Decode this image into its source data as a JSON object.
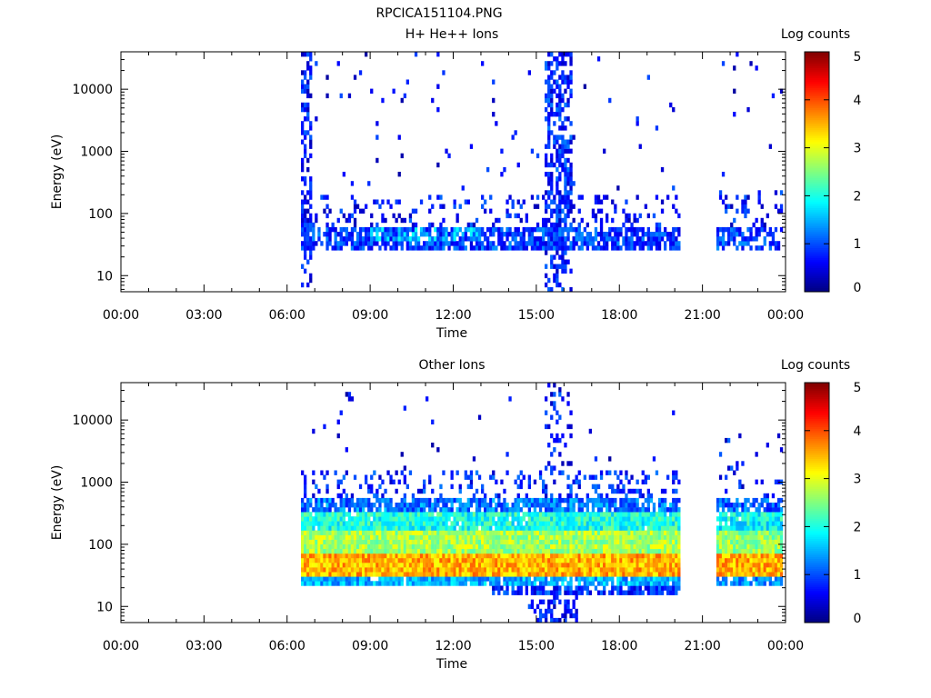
{
  "figure": {
    "title": "RPCICA151104.PNG"
  },
  "chart_data": [
    {
      "type": "heatmap",
      "title": "H+ He++ Ions",
      "xlabel": "Time",
      "ylabel": "Energy (eV)",
      "x_ticks": [
        "00:00",
        "03:00",
        "06:00",
        "09:00",
        "12:00",
        "15:00",
        "18:00",
        "21:00",
        "00:00"
      ],
      "xlim_hours": [
        0,
        24
      ],
      "y_scale": "log",
      "y_ticks": [
        10,
        100,
        1000,
        10000
      ],
      "y_tick_labels": [
        "10",
        "100",
        "1000",
        "10000"
      ],
      "ylim": [
        5.5,
        40000
      ],
      "colorbar": {
        "label": "Log counts",
        "range": [
          0,
          5
        ],
        "ticks": [
          "0",
          "1",
          "2",
          "3",
          "4",
          "5"
        ],
        "colormap": "jet"
      },
      "data_intervals_hours": [
        [
          6.55,
          20.2
        ],
        [
          21.5,
          23.95
        ]
      ],
      "regions": [
        {
          "t": [
            6.55,
            20.2
          ],
          "e": [
            25,
            60
          ],
          "level": 0.9,
          "density": 0.75
        },
        {
          "t": [
            9.0,
            13.0
          ],
          "e": [
            38,
            60
          ],
          "level": 1.5,
          "density": 0.55
        },
        {
          "t": [
            6.55,
            20.2
          ],
          "e": [
            60,
            200
          ],
          "level": 0.7,
          "density": 0.2
        },
        {
          "t": [
            6.55,
            6.9
          ],
          "e": [
            5.5,
            40000
          ],
          "level": 0.7,
          "density": 0.5
        },
        {
          "t": [
            15.3,
            16.3
          ],
          "e": [
            25,
            40000
          ],
          "level": 0.8,
          "density": 0.55
        },
        {
          "t": [
            15.3,
            16.3
          ],
          "e": [
            5.5,
            25
          ],
          "level": 0.7,
          "density": 0.3
        },
        {
          "t": [
            6.55,
            20.2
          ],
          "e": [
            200,
            40000
          ],
          "level": 0.6,
          "density": 0.015
        },
        {
          "t": [
            21.5,
            23.95
          ],
          "e": [
            25,
            60
          ],
          "level": 0.9,
          "density": 0.55
        },
        {
          "t": [
            21.5,
            23.95
          ],
          "e": [
            60,
            250
          ],
          "level": 0.7,
          "density": 0.2
        },
        {
          "t": [
            21.5,
            23.95
          ],
          "e": [
            250,
            40000
          ],
          "level": 0.6,
          "density": 0.015
        }
      ]
    },
    {
      "type": "heatmap",
      "title": "Other Ions",
      "xlabel": "Time",
      "ylabel": "Energy (eV)",
      "x_ticks": [
        "00:00",
        "03:00",
        "06:00",
        "09:00",
        "12:00",
        "15:00",
        "18:00",
        "21:00",
        "00:00"
      ],
      "xlim_hours": [
        0,
        24
      ],
      "y_scale": "log",
      "y_ticks": [
        10,
        100,
        1000,
        10000
      ],
      "y_tick_labels": [
        "10",
        "100",
        "1000",
        "10000"
      ],
      "ylim": [
        5.5,
        40000
      ],
      "colorbar": {
        "label": "Log counts",
        "range": [
          0,
          5
        ],
        "ticks": [
          "0",
          "1",
          "2",
          "3",
          "4",
          "5"
        ],
        "colormap": "jet"
      },
      "data_intervals_hours": [
        [
          6.55,
          20.2
        ],
        [
          21.5,
          23.95
        ]
      ],
      "regions": [
        {
          "t": [
            6.55,
            20.2
          ],
          "e": [
            30,
            70
          ],
          "level": 3.5,
          "density": 1.0
        },
        {
          "t": [
            6.55,
            20.2
          ],
          "e": [
            70,
            160
          ],
          "level": 2.7,
          "density": 1.0
        },
        {
          "t": [
            6.55,
            20.2
          ],
          "e": [
            160,
            350
          ],
          "level": 2.0,
          "density": 0.95
        },
        {
          "t": [
            6.55,
            20.2
          ],
          "e": [
            350,
            600
          ],
          "level": 1.2,
          "density": 0.8
        },
        {
          "t": [
            6.55,
            20.2
          ],
          "e": [
            600,
            1500
          ],
          "level": 0.8,
          "density": 0.25
        },
        {
          "t": [
            6.55,
            20.2
          ],
          "e": [
            22,
            30
          ],
          "level": 1.5,
          "density": 0.9
        },
        {
          "t": [
            13.4,
            20.2
          ],
          "e": [
            15,
            22
          ],
          "level": 0.8,
          "density": 0.7
        },
        {
          "t": [
            14.7,
            16.5
          ],
          "e": [
            5.5,
            15
          ],
          "level": 0.7,
          "density": 0.4
        },
        {
          "t": [
            15.3,
            16.3
          ],
          "e": [
            1500,
            40000
          ],
          "level": 0.7,
          "density": 0.25
        },
        {
          "t": [
            6.55,
            20.2
          ],
          "e": [
            1500,
            40000
          ],
          "level": 0.6,
          "density": 0.01
        },
        {
          "t": [
            21.5,
            23.95
          ],
          "e": [
            30,
            70
          ],
          "level": 3.5,
          "density": 1.0
        },
        {
          "t": [
            21.5,
            23.95
          ],
          "e": [
            70,
            160
          ],
          "level": 2.6,
          "density": 1.0
        },
        {
          "t": [
            21.5,
            23.95
          ],
          "e": [
            160,
            350
          ],
          "level": 1.9,
          "density": 0.95
        },
        {
          "t": [
            21.5,
            23.95
          ],
          "e": [
            350,
            600
          ],
          "level": 1.1,
          "density": 0.7
        },
        {
          "t": [
            21.5,
            23.95
          ],
          "e": [
            600,
            6000
          ],
          "level": 0.7,
          "density": 0.08
        },
        {
          "t": [
            21.5,
            23.95
          ],
          "e": [
            22,
            30
          ],
          "level": 1.3,
          "density": 0.8
        }
      ]
    }
  ]
}
